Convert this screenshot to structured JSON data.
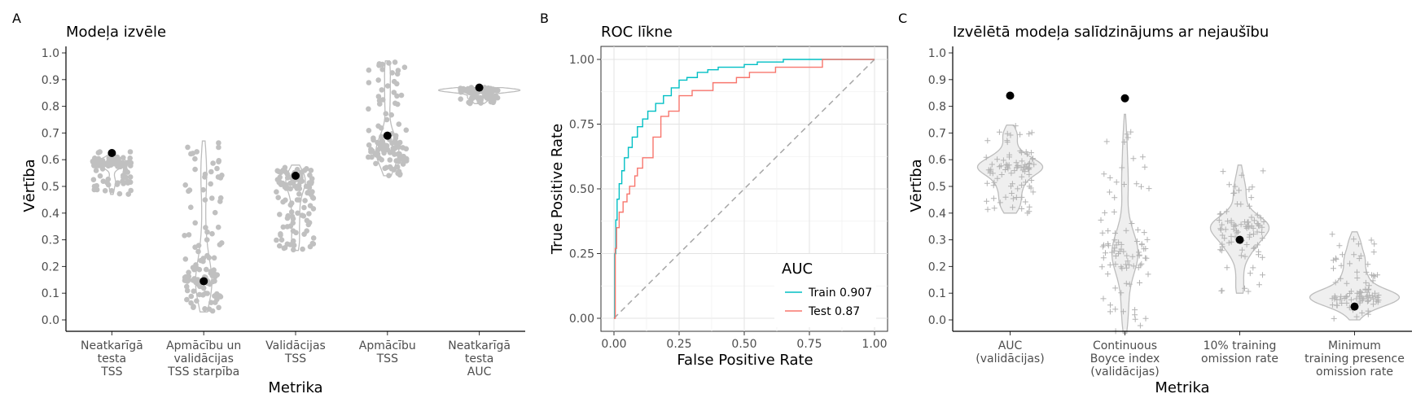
{
  "chart_data": [
    {
      "panel": "A",
      "type": "scatter",
      "title": "Modeļa izvēle",
      "xlabel": "Metrika",
      "ylabel": "Vērtība",
      "ylim": [
        0,
        1.0
      ],
      "y_ticks": [
        "0.0",
        "0.1",
        "0.2",
        "0.3",
        "0.4",
        "0.5",
        "0.6",
        "0.7",
        "0.8",
        "0.9",
        "1.0"
      ],
      "categories": [
        [
          "Neatkarīgā",
          "testa",
          "TSS"
        ],
        [
          "Apmācību un",
          "validācijas",
          "TSS starpība"
        ],
        [
          "Validācijas",
          "TSS"
        ],
        [
          "Apmācību",
          "TSS"
        ],
        [
          "Neatkarīgā",
          "testa",
          "AUC"
        ]
      ],
      "selected_values": [
        0.625,
        0.145,
        0.54,
        0.69,
        0.87
      ],
      "distributions": [
        {
          "min": 0.47,
          "max": 0.63,
          "mode": 0.59
        },
        {
          "min": 0.03,
          "max": 0.67,
          "mode": 0.13
        },
        {
          "min": 0.26,
          "max": 0.58,
          "mode": 0.52
        },
        {
          "min": 0.54,
          "max": 0.97,
          "mode": 0.63
        },
        {
          "min": 0.81,
          "max": 0.87,
          "mode": 0.86
        }
      ],
      "grid": false,
      "legend": "none"
    },
    {
      "panel": "B",
      "type": "line",
      "title": "ROC līkne",
      "xlabel": "False Positive Rate",
      "ylabel": "True Positive Rate",
      "xlim": [
        0,
        1
      ],
      "ylim": [
        0,
        1
      ],
      "x_ticks": [
        "0.00",
        "0.25",
        "0.50",
        "0.75",
        "1.00"
      ],
      "y_ticks": [
        "0.00",
        "0.25",
        "0.50",
        "0.75",
        "1.00"
      ],
      "grid": true,
      "legend": "bottom-right",
      "legend_title": "AUC",
      "series": [
        {
          "name": "Train 0.907",
          "color": "#00BFC4",
          "x": [
            0,
            0.003,
            0.007,
            0.012,
            0.02,
            0.03,
            0.04,
            0.055,
            0.07,
            0.09,
            0.11,
            0.13,
            0.16,
            0.19,
            0.22,
            0.25,
            0.28,
            0.32,
            0.36,
            0.4,
            0.45,
            0.5,
            0.55,
            0.6,
            0.65,
            0.7,
            0.8,
            0.9,
            1.0
          ],
          "y": [
            0,
            0.25,
            0.38,
            0.46,
            0.52,
            0.57,
            0.62,
            0.66,
            0.7,
            0.74,
            0.77,
            0.8,
            0.83,
            0.86,
            0.89,
            0.92,
            0.93,
            0.95,
            0.96,
            0.97,
            0.97,
            0.98,
            0.99,
            0.99,
            1.0,
            1.0,
            1.0,
            1.0,
            1.0
          ]
        },
        {
          "name": "Test 0.87",
          "color": "#F8766D",
          "x": [
            0,
            0.005,
            0.01,
            0.02,
            0.035,
            0.05,
            0.06,
            0.08,
            0.09,
            0.11,
            0.13,
            0.15,
            0.18,
            0.21,
            0.25,
            0.3,
            0.34,
            0.38,
            0.42,
            0.47,
            0.52,
            0.57,
            0.62,
            0.66,
            0.7,
            0.75,
            0.8,
            0.9,
            1.0
          ],
          "y": [
            0,
            0.27,
            0.35,
            0.41,
            0.45,
            0.48,
            0.51,
            0.55,
            0.58,
            0.62,
            0.62,
            0.7,
            0.78,
            0.8,
            0.86,
            0.88,
            0.88,
            0.91,
            0.91,
            0.93,
            0.95,
            0.95,
            0.97,
            0.97,
            0.97,
            0.97,
            1.0,
            1.0,
            1.0
          ]
        }
      ],
      "reference_line": {
        "x": [
          0,
          1
        ],
        "y": [
          0,
          1
        ],
        "style": "dashed"
      }
    },
    {
      "panel": "C",
      "type": "scatter",
      "title": "Izvēlētā modeļa salīdzinājums ar nejaušību",
      "xlabel": "Metrika",
      "ylabel": "Vērtība",
      "ylim": [
        0,
        1.0
      ],
      "y_ticks": [
        "0.0",
        "0.1",
        "0.2",
        "0.3",
        "0.4",
        "0.5",
        "0.6",
        "0.7",
        "0.8",
        "0.9",
        "1.0"
      ],
      "categories": [
        [
          "AUC",
          "(validācijas)"
        ],
        [
          "Continuous",
          "Boyce index",
          "(validācijas)"
        ],
        [
          "10% training",
          "omission rate"
        ],
        [
          "Minimum",
          "training presence",
          "omission rate"
        ]
      ],
      "selected_values": [
        0.84,
        0.83,
        0.3,
        0.05
      ],
      "distributions": [
        {
          "min": 0.4,
          "max": 0.73,
          "mode": 0.57
        },
        {
          "min": -0.05,
          "max": 0.77,
          "mode": 0.25
        },
        {
          "min": 0.1,
          "max": 0.58,
          "mode": 0.33
        },
        {
          "min": 0.0,
          "max": 0.33,
          "mode": 0.09
        }
      ],
      "grid": false,
      "legend": "none"
    }
  ]
}
